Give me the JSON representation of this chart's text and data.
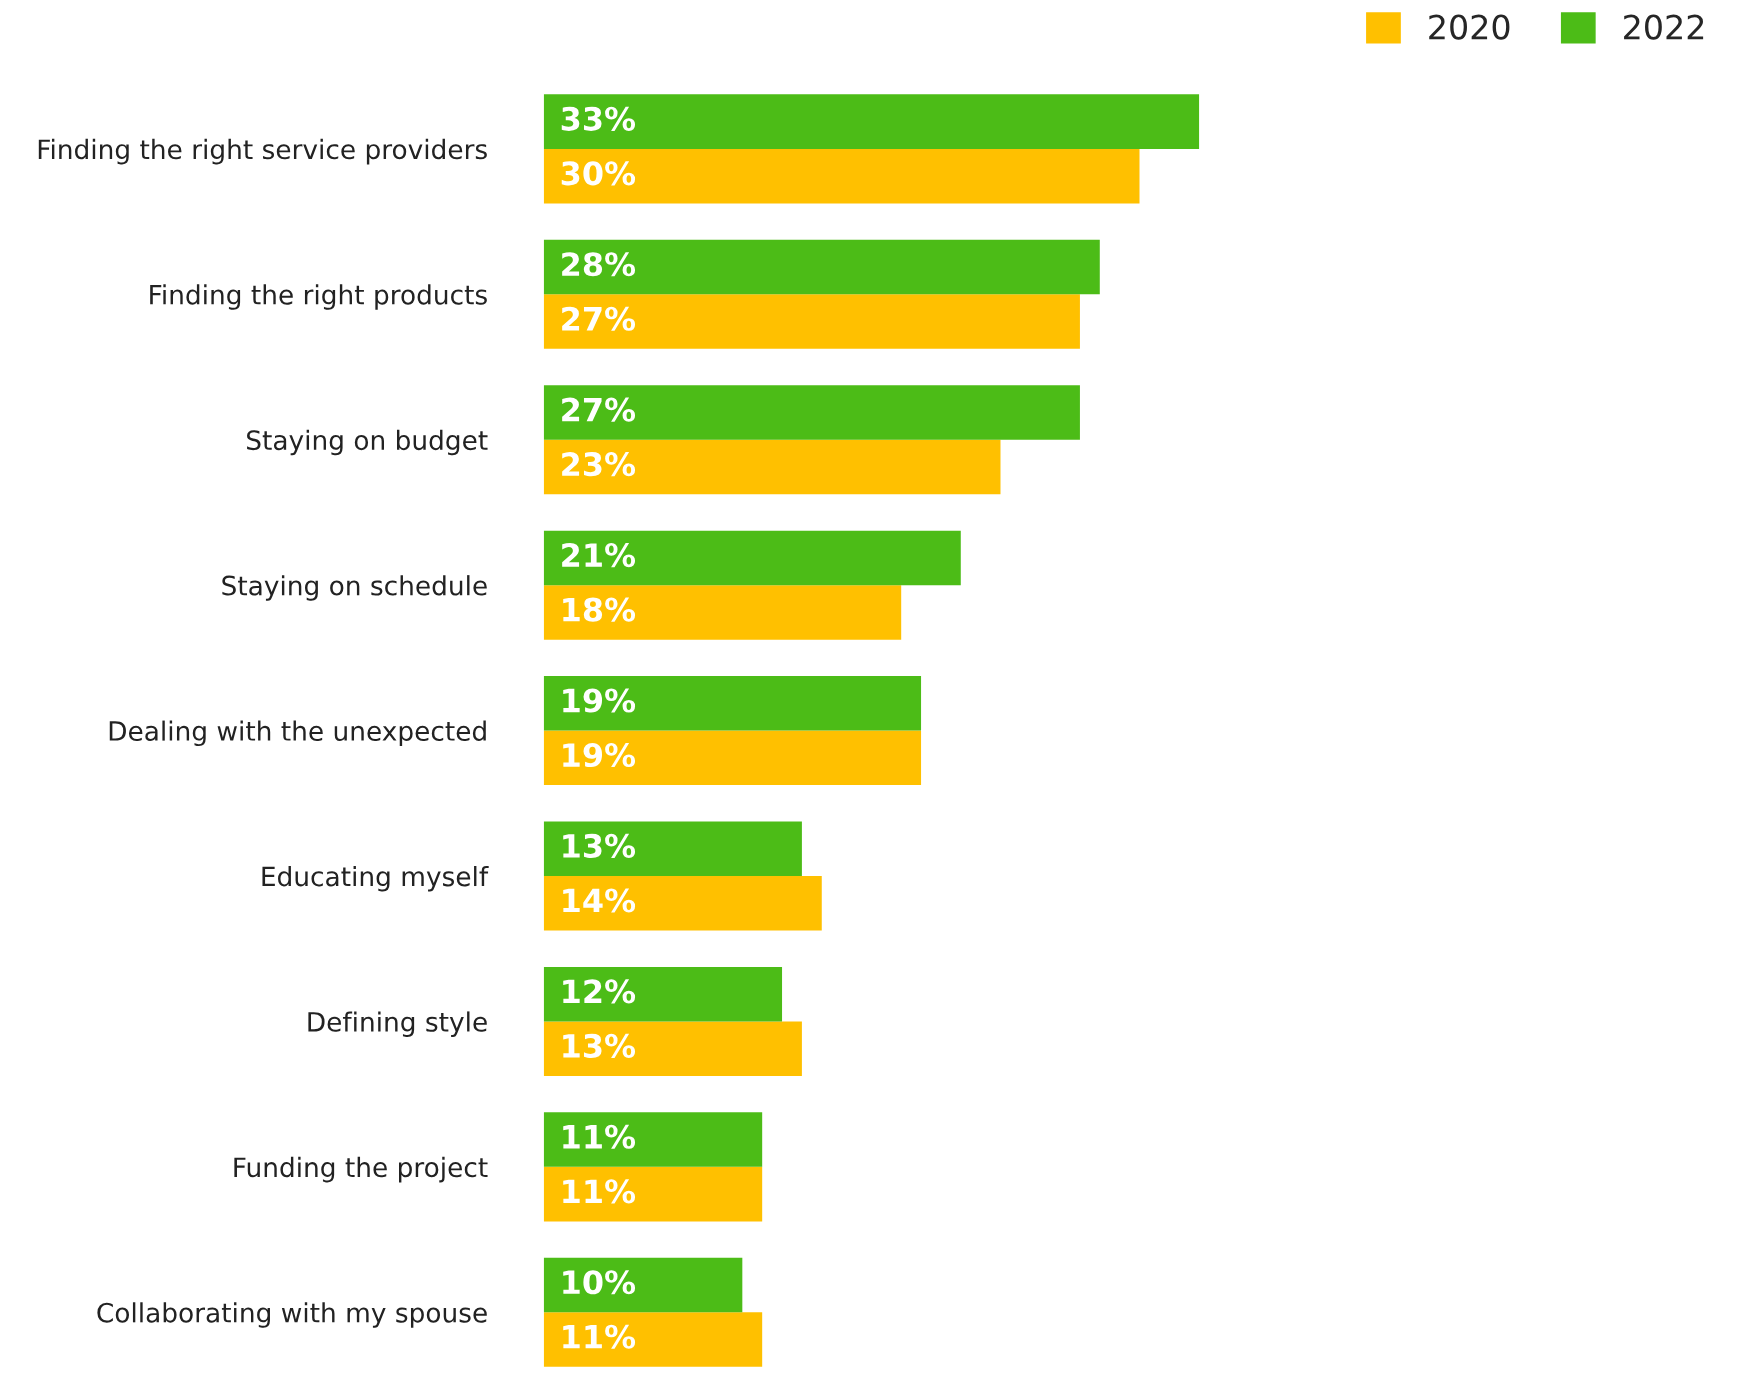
{
  "chart_data": {
    "type": "bar",
    "orientation": "horizontal",
    "legend": "top right",
    "grid": false,
    "tick_labels": "y",
    "categories": [
      "Finding the right service providers",
      "Finding the right products",
      "Staying on budget",
      "Staying on schedule",
      "Dealing with the unexpected",
      "Educating myself",
      "Defining style",
      "Funding the project",
      "Collaborating with my spouse"
    ],
    "series": [
      {
        "name": "2020",
        "color": "#ffc000",
        "values": [
          30,
          27,
          23,
          18,
          19,
          14,
          13,
          11,
          11
        ],
        "value_labels": [
          "30%",
          "27%",
          "23%",
          "18%",
          "19%",
          "14%",
          "13%",
          "11%",
          "11%"
        ]
      },
      {
        "name": "2022",
        "color": "#4cbc17",
        "values": [
          33,
          28,
          27,
          21,
          19,
          13,
          12,
          11,
          10
        ],
        "value_labels": [
          "33%",
          "28%",
          "27%",
          "21%",
          "19%",
          "13%",
          "12%",
          "11%",
          "10%"
        ]
      }
    ]
  }
}
